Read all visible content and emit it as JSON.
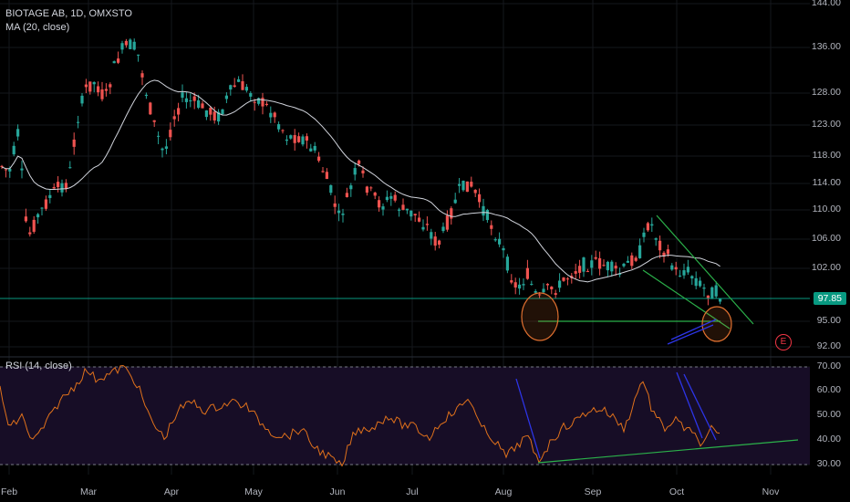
{
  "header": {
    "symbol_line": "BIOTAGE AB, 1D, OMXSTO",
    "ma_line": "MA (20, close)"
  },
  "rsi_panel": {
    "label": "RSI (14, close)"
  },
  "last_price": "97.85",
  "earnings_marker": "E",
  "colors": {
    "up": "#26a69a",
    "down": "#ef5350",
    "ma": "#d1d4dc",
    "rsi": "#e0711b",
    "rsi_band": "#170d26",
    "price_line": "#089981",
    "trend_green": "#2bb14a",
    "ellipse": "#e07030",
    "arrow_blue": "#2d35e8"
  },
  "chart_data": [
    {
      "type": "candlestick",
      "title": "BIOTAGE AB, 1D, OMXSTO",
      "y_ticks": [
        "144.00",
        "136.00",
        "128.00",
        "123.00",
        "118.00",
        "114.00",
        "110.00",
        "106.00",
        "102.00",
        "95.00",
        "92.00"
      ],
      "x_ticks": [
        "Feb",
        "Mar",
        "Apr",
        "May",
        "Jun",
        "Jul",
        "Aug",
        "Sep",
        "Oct",
        "Nov"
      ],
      "ylim": [
        91,
        146
      ],
      "last_price": 97.85,
      "series": [
        {
          "name": "MA (20, close)",
          "type": "line"
        }
      ]
    },
    {
      "type": "line",
      "title": "RSI (14, close)",
      "y_ticks": [
        "70.00",
        "60.00",
        "50.00",
        "40.00",
        "30.00"
      ],
      "ylim": [
        28,
        72
      ],
      "bands": [
        30,
        70
      ]
    }
  ]
}
